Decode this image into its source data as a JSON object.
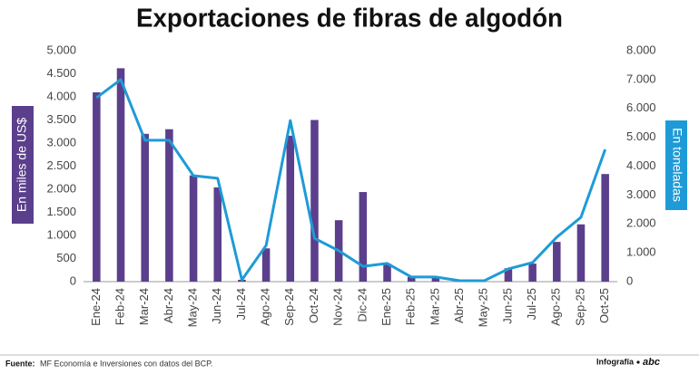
{
  "chart_data": {
    "type": "combo",
    "title": "Exportaciones de fibras de algodón",
    "categories": [
      "Ene-24",
      "Feb-24",
      "Mar-24",
      "Abr-24",
      "May-24",
      "Jun-24",
      "Jul-24",
      "Ago-24",
      "Sep-24",
      "Oct-24",
      "Nov-24",
      "Dic-24",
      "Ene-25",
      "Feb-25",
      "Mar-25",
      "Abr-25",
      "May-25",
      "Jun-25",
      "Jul-25",
      "Ago-25",
      "Sep-25",
      "Oct-25"
    ],
    "series": [
      {
        "name": "En miles de US$",
        "type": "bar",
        "color": "#5b3f8c",
        "values": [
          4100,
          4620,
          3200,
          3300,
          2300,
          2040,
          40,
          720,
          3160,
          3500,
          1330,
          1940,
          390,
          100,
          100,
          0,
          0,
          290,
          390,
          860,
          1240,
          2330
        ]
      },
      {
        "name": "En toneladas",
        "type": "line",
        "axis": "y2",
        "color": "#1e9bd7",
        "values": [
          6370,
          7000,
          4900,
          4900,
          3670,
          3580,
          60,
          1250,
          5580,
          1500,
          1070,
          530,
          630,
          160,
          160,
          30,
          30,
          440,
          660,
          1540,
          2230,
          4580
        ]
      }
    ],
    "ylim": [
      0,
      5000
    ],
    "yticks": [
      0,
      500,
      {
        "value": 1000,
        "label": "1.000"
      },
      {
        "value": 1500,
        "label": "1.500"
      },
      {
        "value": 2000,
        "label": "2.000"
      },
      {
        "value": 2500,
        "label": "2.500"
      },
      {
        "value": 3000,
        "label": "3.000"
      },
      {
        "value": 3500,
        "label": "3.500"
      },
      {
        "value": 4000,
        "label": "4.000"
      },
      {
        "value": 4500,
        "label": "4.500"
      },
      {
        "value": 5000,
        "label": "5.000"
      }
    ],
    "y2lim": [
      0,
      8000
    ],
    "y2ticks": [
      0,
      {
        "value": 1000,
        "label": "1.000"
      },
      {
        "value": 2000,
        "label": "2.000"
      },
      {
        "value": 3000,
        "label": "3.000"
      },
      {
        "value": 4000,
        "label": "4.000"
      },
      {
        "value": 5000,
        "label": "5.000"
      },
      {
        "value": 6000,
        "label": "6.000"
      },
      {
        "value": 7000,
        "label": "7.000"
      },
      {
        "value": 8000,
        "label": "8.000"
      }
    ],
    "source_label": "Fuente:",
    "source": "MF Economía e Inversiones con datos del BCP.",
    "credit": "Infografía",
    "logo": "abc"
  }
}
